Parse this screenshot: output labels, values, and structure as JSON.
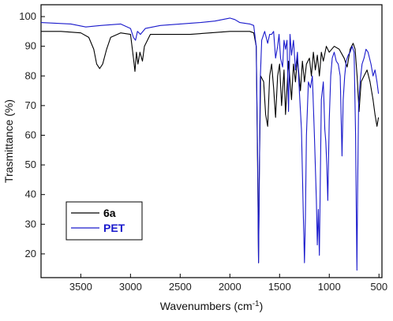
{
  "chart_data": {
    "type": "line",
    "xlabel": "Wavenumbers (cm",
    "xlabel_sup": "-1",
    "xlabel_close": ")",
    "ylabel": "Trasmittance (%)",
    "xlim": [
      3900,
      470
    ],
    "ylim": [
      12,
      104
    ],
    "x_reversed": true,
    "x_ticks": [
      3500,
      3000,
      2500,
      2000,
      1500,
      1000,
      500
    ],
    "x_tick_labels": [
      "3500",
      "3000",
      "2500",
      "2000",
      "1500",
      "1000",
      "500"
    ],
    "y_ticks": [
      20,
      30,
      40,
      50,
      60,
      70,
      80,
      90,
      100
    ],
    "y_tick_labels": [
      "20",
      "30",
      "40",
      "50",
      "60",
      "70",
      "80",
      "90",
      "100"
    ],
    "grid": false,
    "legend_position": "bottom-left",
    "series": [
      {
        "name": "6a",
        "color": "#000000",
        "points": [
          [
            3900,
            95
          ],
          [
            3700,
            95
          ],
          [
            3500,
            94.5
          ],
          [
            3420,
            93
          ],
          [
            3370,
            89
          ],
          [
            3340,
            84
          ],
          [
            3310,
            82.5
          ],
          [
            3280,
            84
          ],
          [
            3240,
            89
          ],
          [
            3200,
            93
          ],
          [
            3100,
            94.5
          ],
          [
            3000,
            94
          ],
          [
            2970,
            86
          ],
          [
            2955,
            81.5
          ],
          [
            2940,
            88
          ],
          [
            2925,
            84
          ],
          [
            2905,
            88
          ],
          [
            2880,
            85
          ],
          [
            2860,
            90
          ],
          [
            2800,
            94
          ],
          [
            2600,
            94
          ],
          [
            2400,
            94
          ],
          [
            2200,
            94.5
          ],
          [
            2000,
            95
          ],
          [
            1800,
            95
          ],
          [
            1760,
            94.5
          ],
          [
            1735,
            90
          ],
          [
            1718,
            40
          ],
          [
            1712,
            17
          ],
          [
            1705,
            45
          ],
          [
            1690,
            80
          ],
          [
            1660,
            78
          ],
          [
            1640,
            67
          ],
          [
            1620,
            63
          ],
          [
            1600,
            80
          ],
          [
            1580,
            84
          ],
          [
            1560,
            76
          ],
          [
            1540,
            66
          ],
          [
            1520,
            80
          ],
          [
            1500,
            84
          ],
          [
            1480,
            70
          ],
          [
            1455,
            82
          ],
          [
            1440,
            67
          ],
          [
            1410,
            85
          ],
          [
            1380,
            72
          ],
          [
            1360,
            84
          ],
          [
            1340,
            78
          ],
          [
            1320,
            86
          ],
          [
            1290,
            75
          ],
          [
            1270,
            85
          ],
          [
            1250,
            78
          ],
          [
            1230,
            84
          ],
          [
            1200,
            86
          ],
          [
            1180,
            80
          ],
          [
            1160,
            88
          ],
          [
            1140,
            82
          ],
          [
            1120,
            87
          ],
          [
            1100,
            80
          ],
          [
            1080,
            88
          ],
          [
            1060,
            85
          ],
          [
            1030,
            90
          ],
          [
            1000,
            88
          ],
          [
            950,
            90
          ],
          [
            900,
            89
          ],
          [
            850,
            86
          ],
          [
            820,
            83
          ],
          [
            790,
            89
          ],
          [
            760,
            91
          ],
          [
            740,
            89
          ],
          [
            720,
            80
          ],
          [
            700,
            68
          ],
          [
            680,
            78
          ],
          [
            650,
            80
          ],
          [
            620,
            82
          ],
          [
            590,
            78
          ],
          [
            560,
            72
          ],
          [
            540,
            67
          ],
          [
            520,
            63
          ],
          [
            505,
            66
          ]
        ]
      },
      {
        "name": "PET",
        "color": "#1a1acc",
        "points": [
          [
            3900,
            98
          ],
          [
            3600,
            97.5
          ],
          [
            3450,
            96.5
          ],
          [
            3300,
            97
          ],
          [
            3100,
            97.5
          ],
          [
            3000,
            96
          ],
          [
            2970,
            93
          ],
          [
            2950,
            92
          ],
          [
            2930,
            95
          ],
          [
            2900,
            94
          ],
          [
            2850,
            96
          ],
          [
            2700,
            97
          ],
          [
            2500,
            97.5
          ],
          [
            2300,
            98
          ],
          [
            2150,
            98.5
          ],
          [
            2000,
            99.5
          ],
          [
            1950,
            99
          ],
          [
            1900,
            98
          ],
          [
            1800,
            97.5
          ],
          [
            1760,
            97
          ],
          [
            1735,
            90
          ],
          [
            1720,
            50
          ],
          [
            1712,
            17
          ],
          [
            1705,
            40
          ],
          [
            1695,
            78
          ],
          [
            1680,
            92
          ],
          [
            1650,
            95
          ],
          [
            1620,
            91
          ],
          [
            1600,
            94
          ],
          [
            1580,
            94
          ],
          [
            1560,
            95
          ],
          [
            1540,
            86
          ],
          [
            1520,
            90
          ],
          [
            1505,
            94
          ],
          [
            1490,
            86
          ],
          [
            1470,
            83
          ],
          [
            1455,
            92
          ],
          [
            1440,
            89
          ],
          [
            1425,
            92
          ],
          [
            1410,
            68
          ],
          [
            1395,
            94
          ],
          [
            1380,
            87
          ],
          [
            1360,
            92
          ],
          [
            1340,
            82
          ],
          [
            1320,
            88
          ],
          [
            1300,
            74
          ],
          [
            1280,
            62
          ],
          [
            1262,
            35
          ],
          [
            1250,
            17
          ],
          [
            1240,
            32
          ],
          [
            1230,
            60
          ],
          [
            1210,
            78
          ],
          [
            1190,
            76
          ],
          [
            1170,
            80
          ],
          [
            1150,
            60
          ],
          [
            1130,
            38
          ],
          [
            1120,
            23
          ],
          [
            1110,
            35
          ],
          [
            1100,
            19.5
          ],
          [
            1090,
            45
          ],
          [
            1080,
            72
          ],
          [
            1060,
            78
          ],
          [
            1045,
            62
          ],
          [
            1035,
            58
          ],
          [
            1025,
            50
          ],
          [
            1015,
            38
          ],
          [
            1000,
            65
          ],
          [
            985,
            80
          ],
          [
            970,
            86
          ],
          [
            950,
            88
          ],
          [
            930,
            85
          ],
          [
            910,
            84
          ],
          [
            890,
            80
          ],
          [
            872,
            53
          ],
          [
            860,
            72
          ],
          [
            845,
            80
          ],
          [
            830,
            85
          ],
          [
            810,
            87
          ],
          [
            790,
            88
          ],
          [
            770,
            90
          ],
          [
            750,
            88
          ],
          [
            735,
            60
          ],
          [
            727,
            32
          ],
          [
            722,
            14.5
          ],
          [
            715,
            40
          ],
          [
            705,
            70
          ],
          [
            690,
            78
          ],
          [
            670,
            84
          ],
          [
            650,
            86
          ],
          [
            630,
            89
          ],
          [
            610,
            88
          ],
          [
            580,
            84
          ],
          [
            560,
            80
          ],
          [
            540,
            82
          ],
          [
            520,
            78
          ],
          [
            505,
            74
          ]
        ]
      }
    ]
  }
}
